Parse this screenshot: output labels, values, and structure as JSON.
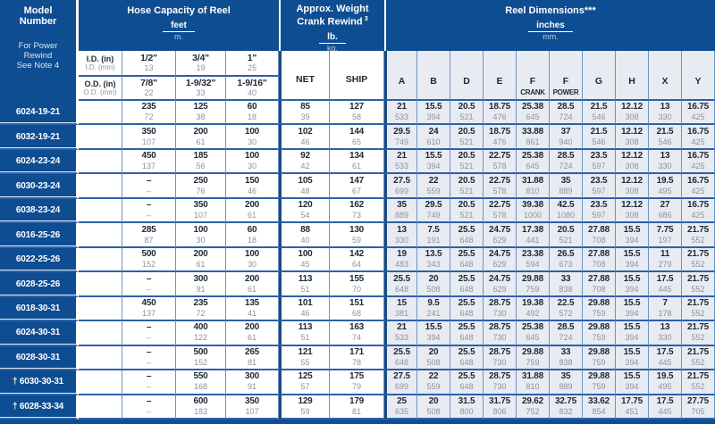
{
  "colors": {
    "header_navy": "#0e4d91",
    "row_line_blue": "#2b61a8",
    "cell_border_blue": "#6e93c4",
    "section_divider": "#1a4a82",
    "dim_cell_bg": "#e8ebf1",
    "value_color": "#1f2833",
    "metric_gray": "#8d939c"
  },
  "table": {
    "model_header": {
      "title_line1": "Model",
      "title_line2": "Number",
      "note_line1": "For Power",
      "note_line2": "Rewind",
      "note_line3": "See Note 4"
    },
    "capacity_header": {
      "title": "Hose Capacity of Reel",
      "unit_top": "feet",
      "unit_bottom": "m."
    },
    "id_row": {
      "label_main": "I.D. (in)",
      "label_sub": "I.D. (mm)",
      "sizes": [
        {
          "in": "1/2\"",
          "mm": "13"
        },
        {
          "in": "3/4\"",
          "mm": "19"
        },
        {
          "in": "1\"",
          "mm": "25"
        }
      ]
    },
    "od_row": {
      "label_main": "O.D. (in)",
      "label_sub": "O.D. (mm)",
      "sizes": [
        {
          "in": "7/8\"",
          "mm": "22"
        },
        {
          "in": "1-9/32\"",
          "mm": "33"
        },
        {
          "in": "1-9/16\"",
          "mm": "40"
        }
      ]
    },
    "weight_header": {
      "line1": "Approx. Weight",
      "line2": "Crank Rewind",
      "note_sup": "3",
      "unit_top": "lb.",
      "unit_bottom": "kg.",
      "columns": [
        "NET",
        "SHIP"
      ]
    },
    "dims_header": {
      "title": "Reel Dimensions***",
      "unit_top": "inches",
      "unit_bottom": "mm.",
      "columns": [
        {
          "l1": "A"
        },
        {
          "l1": "B"
        },
        {
          "l1": "D"
        },
        {
          "l1": "E"
        },
        {
          "l1": "F",
          "l2": "CRANK"
        },
        {
          "l1": "F",
          "l2": "POWER"
        },
        {
          "l1": "G"
        },
        {
          "l1": "H"
        },
        {
          "l1": "X"
        },
        {
          "l1": "Y"
        }
      ]
    },
    "rows": [
      {
        "model": "6024-19-21",
        "capacity": [
          [
            "235",
            "72"
          ],
          [
            "125",
            "38"
          ],
          [
            "60",
            "18"
          ]
        ],
        "weight": [
          [
            "85",
            "39"
          ],
          [
            "127",
            "58"
          ]
        ],
        "dims": [
          [
            "21",
            "533"
          ],
          [
            "15.5",
            "394"
          ],
          [
            "20.5",
            "521"
          ],
          [
            "18.75",
            "476"
          ],
          [
            "25.38",
            "645"
          ],
          [
            "28.5",
            "724"
          ],
          [
            "21.5",
            "546"
          ],
          [
            "12.12",
            "308"
          ],
          [
            "13",
            "330"
          ],
          [
            "16.75",
            "425"
          ]
        ]
      },
      {
        "model": "6032-19-21",
        "capacity": [
          [
            "350",
            "107"
          ],
          [
            "200",
            "61"
          ],
          [
            "100",
            "30"
          ]
        ],
        "weight": [
          [
            "102",
            "46"
          ],
          [
            "144",
            "65"
          ]
        ],
        "dims": [
          [
            "29.5",
            "749"
          ],
          [
            "24",
            "610"
          ],
          [
            "20.5",
            "521"
          ],
          [
            "18.75",
            "476"
          ],
          [
            "33.88",
            "861"
          ],
          [
            "37",
            "940"
          ],
          [
            "21.5",
            "546"
          ],
          [
            "12.12",
            "308"
          ],
          [
            "21.5",
            "546"
          ],
          [
            "16.75",
            "425"
          ]
        ]
      },
      {
        "model": "6024-23-24",
        "capacity": [
          [
            "450",
            "137"
          ],
          [
            "185",
            "56"
          ],
          [
            "100",
            "30"
          ]
        ],
        "weight": [
          [
            "92",
            "42"
          ],
          [
            "134",
            "61"
          ]
        ],
        "dims": [
          [
            "21",
            "533"
          ],
          [
            "15.5",
            "394"
          ],
          [
            "20.5",
            "521"
          ],
          [
            "22.75",
            "578"
          ],
          [
            "25.38",
            "645"
          ],
          [
            "28.5",
            "724"
          ],
          [
            "23.5",
            "597"
          ],
          [
            "12.12",
            "308"
          ],
          [
            "13",
            "330"
          ],
          [
            "16.75",
            "425"
          ]
        ]
      },
      {
        "model": "6030-23-24",
        "capacity": [
          [
            "–",
            "–"
          ],
          [
            "250",
            "76"
          ],
          [
            "150",
            "46"
          ]
        ],
        "weight": [
          [
            "105",
            "48"
          ],
          [
            "147",
            "67"
          ]
        ],
        "dims": [
          [
            "27.5",
            "699"
          ],
          [
            "22",
            "559"
          ],
          [
            "20.5",
            "521"
          ],
          [
            "22.75",
            "578"
          ],
          [
            "31.88",
            "810"
          ],
          [
            "35",
            "889"
          ],
          [
            "23.5",
            "597"
          ],
          [
            "12.12",
            "308"
          ],
          [
            "19.5",
            "495"
          ],
          [
            "16.75",
            "425"
          ]
        ]
      },
      {
        "model": "6038-23-24",
        "capacity": [
          [
            "–",
            "–"
          ],
          [
            "350",
            "107"
          ],
          [
            "200",
            "61"
          ]
        ],
        "weight": [
          [
            "120",
            "54"
          ],
          [
            "162",
            "73"
          ]
        ],
        "dims": [
          [
            "35",
            "889"
          ],
          [
            "29.5",
            "749"
          ],
          [
            "20.5",
            "521"
          ],
          [
            "22.75",
            "578"
          ],
          [
            "39.38",
            "1000"
          ],
          [
            "42.5",
            "1080"
          ],
          [
            "23.5",
            "597"
          ],
          [
            "12.12",
            "308"
          ],
          [
            "27",
            "686"
          ],
          [
            "16.75",
            "425"
          ]
        ]
      },
      {
        "model": "6016-25-26",
        "capacity": [
          [
            "285",
            "87"
          ],
          [
            "100",
            "30"
          ],
          [
            "60",
            "18"
          ]
        ],
        "weight": [
          [
            "88",
            "40"
          ],
          [
            "130",
            "59"
          ]
        ],
        "dims": [
          [
            "13",
            "330"
          ],
          [
            "7.5",
            "191"
          ],
          [
            "25.5",
            "648"
          ],
          [
            "24.75",
            "629"
          ],
          [
            "17.38",
            "441"
          ],
          [
            "20.5",
            "521"
          ],
          [
            "27.88",
            "708"
          ],
          [
            "15.5",
            "394"
          ],
          [
            "7.75",
            "197"
          ],
          [
            "21.75",
            "552"
          ]
        ]
      },
      {
        "model": "6022-25-26",
        "capacity": [
          [
            "500",
            "152"
          ],
          [
            "200",
            "61"
          ],
          [
            "100",
            "30"
          ]
        ],
        "weight": [
          [
            "100",
            "45"
          ],
          [
            "142",
            "64"
          ]
        ],
        "dims": [
          [
            "19",
            "483"
          ],
          [
            "13.5",
            "343"
          ],
          [
            "25.5",
            "648"
          ],
          [
            "24.75",
            "629"
          ],
          [
            "23.38",
            "594"
          ],
          [
            "26.5",
            "673"
          ],
          [
            "27.88",
            "708"
          ],
          [
            "15.5",
            "394"
          ],
          [
            "11",
            "279"
          ],
          [
            "21.75",
            "552"
          ]
        ]
      },
      {
        "model": "6028-25-26",
        "capacity": [
          [
            "–",
            "–"
          ],
          [
            "300",
            "91"
          ],
          [
            "200",
            "61"
          ]
        ],
        "weight": [
          [
            "113",
            "51"
          ],
          [
            "155",
            "70"
          ]
        ],
        "dims": [
          [
            "25.5",
            "648"
          ],
          [
            "20",
            "508"
          ],
          [
            "25.5",
            "648"
          ],
          [
            "24.75",
            "629"
          ],
          [
            "29.88",
            "759"
          ],
          [
            "33",
            "838"
          ],
          [
            "27.88",
            "708"
          ],
          [
            "15.5",
            "394"
          ],
          [
            "17.5",
            "445"
          ],
          [
            "21.75",
            "552"
          ]
        ]
      },
      {
        "model": "6018-30-31",
        "capacity": [
          [
            "450",
            "137"
          ],
          [
            "235",
            "72"
          ],
          [
            "135",
            "41"
          ]
        ],
        "weight": [
          [
            "101",
            "46"
          ],
          [
            "151",
            "68"
          ]
        ],
        "dims": [
          [
            "15",
            "381"
          ],
          [
            "9.5",
            "241"
          ],
          [
            "25.5",
            "648"
          ],
          [
            "28.75",
            "730"
          ],
          [
            "19.38",
            "492"
          ],
          [
            "22.5",
            "572"
          ],
          [
            "29.88",
            "759"
          ],
          [
            "15.5",
            "394"
          ],
          [
            "7",
            "178"
          ],
          [
            "21.75",
            "552"
          ]
        ]
      },
      {
        "model": "6024-30-31",
        "capacity": [
          [
            "–",
            "–"
          ],
          [
            "400",
            "122"
          ],
          [
            "200",
            "61"
          ]
        ],
        "weight": [
          [
            "113",
            "51"
          ],
          [
            "163",
            "74"
          ]
        ],
        "dims": [
          [
            "21",
            "533"
          ],
          [
            "15.5",
            "394"
          ],
          [
            "25.5",
            "648"
          ],
          [
            "28.75",
            "730"
          ],
          [
            "25.38",
            "645"
          ],
          [
            "28.5",
            "724"
          ],
          [
            "29.88",
            "759"
          ],
          [
            "15.5",
            "394"
          ],
          [
            "13",
            "330"
          ],
          [
            "21.75",
            "552"
          ]
        ]
      },
      {
        "model": "6028-30-31",
        "capacity": [
          [
            "–",
            "–"
          ],
          [
            "500",
            "152"
          ],
          [
            "265",
            "81"
          ]
        ],
        "weight": [
          [
            "121",
            "55"
          ],
          [
            "171",
            "78"
          ]
        ],
        "dims": [
          [
            "25.5",
            "648"
          ],
          [
            "20",
            "508"
          ],
          [
            "25.5",
            "648"
          ],
          [
            "28.75",
            "730"
          ],
          [
            "29.88",
            "759"
          ],
          [
            "33",
            "838"
          ],
          [
            "29.88",
            "759"
          ],
          [
            "15.5",
            "394"
          ],
          [
            "17.5",
            "445"
          ],
          [
            "21.75",
            "552"
          ]
        ]
      },
      {
        "model": "† 6030-30-31",
        "capacity": [
          [
            "–",
            "–"
          ],
          [
            "550",
            "168"
          ],
          [
            "300",
            "91"
          ]
        ],
        "weight": [
          [
            "125",
            "57"
          ],
          [
            "175",
            "79"
          ]
        ],
        "dims": [
          [
            "27.5",
            "699"
          ],
          [
            "22",
            "559"
          ],
          [
            "25.5",
            "648"
          ],
          [
            "28.75",
            "730"
          ],
          [
            "31.88",
            "810"
          ],
          [
            "35",
            "889"
          ],
          [
            "29.88",
            "759"
          ],
          [
            "15.5",
            "394"
          ],
          [
            "19.5",
            "495"
          ],
          [
            "21.75",
            "552"
          ]
        ]
      },
      {
        "model": "† 6028-33-34",
        "capacity": [
          [
            "–",
            "–"
          ],
          [
            "600",
            "183"
          ],
          [
            "350",
            "107"
          ]
        ],
        "weight": [
          [
            "129",
            "59"
          ],
          [
            "179",
            "81"
          ]
        ],
        "dims": [
          [
            "25",
            "635"
          ],
          [
            "20",
            "508"
          ],
          [
            "31.5",
            "800"
          ],
          [
            "31.75",
            "806"
          ],
          [
            "29.62",
            "752"
          ],
          [
            "32.75",
            "832"
          ],
          [
            "33.62",
            "854"
          ],
          [
            "17.75",
            "451"
          ],
          [
            "17.5",
            "445"
          ],
          [
            "27.75",
            "705"
          ]
        ]
      }
    ]
  }
}
